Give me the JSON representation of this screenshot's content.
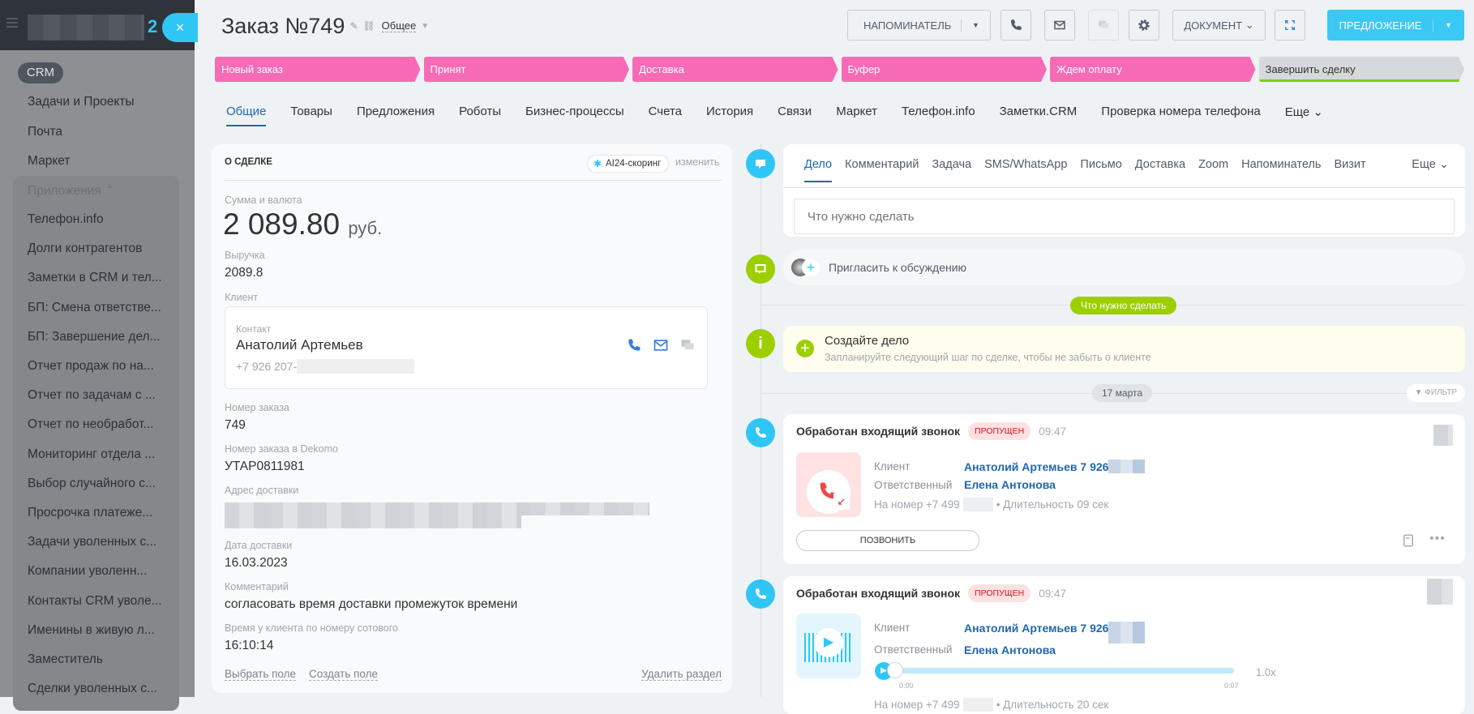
{
  "sidebar": {
    "logo_suffix": "2",
    "close_label": "×",
    "crm_label": "CRM",
    "items": [
      "Задачи и Проекты",
      "Почта",
      "Маркет"
    ],
    "apps_header": "Приложения",
    "apps": [
      "Телефон.info",
      "Долги контрагентов",
      "Заметки в CRM и тел...",
      "БП: Смена ответстве...",
      "БП: Завершение дел...",
      "Отчет продаж по на...",
      "Отчет по задачам с ...",
      "Отчет по необработ...",
      "Мониторинг отдела ...",
      "Выбор случайного с...",
      "Просрочка платеже...",
      "Задачи уволенных с...",
      "Компании уволенн...",
      "Контакты CRM уволе...",
      "Именины в живую л...",
      "Заместитель",
      "Сделки уволенных с..."
    ]
  },
  "header": {
    "title": "Заказ №749",
    "category": "Общее",
    "reminder_label": "НАПОМИНАТЕЛЬ",
    "document_label": "ДОКУМЕНТ",
    "proposal_label": "ПРЕДЛОЖЕНИЕ",
    "accent": "#3bc8f5"
  },
  "stages": [
    {
      "label": "Новый заказ",
      "color": "#f76bb6"
    },
    {
      "label": "Принят",
      "color": "#f76bb6"
    },
    {
      "label": "Доставка",
      "color": "#f76bb6"
    },
    {
      "label": "Буфер",
      "color": "#f76bb6"
    },
    {
      "label": "Ждем оплату",
      "color": "#f76bb6"
    },
    {
      "label": "Завершить сделку",
      "color": "#d5d8dc"
    }
  ],
  "tabs": [
    "Общие",
    "Товары",
    "Предложения",
    "Роботы",
    "Бизнес-процессы",
    "Счета",
    "История",
    "Связи",
    "Маркет",
    "Телефон.info",
    "Заметки.CRM",
    "Проверка номера телефона",
    "Еще"
  ],
  "deal": {
    "section_title": "О СДЕЛКЕ",
    "scoring_label": "AI24-скоринг",
    "edit_label": "изменить",
    "amount_label": "Сумма и валюта",
    "amount": "2 089.80",
    "currency": "руб.",
    "revenue_label": "Выручка",
    "revenue": "2089.8",
    "client_label": "Клиент",
    "contact_label": "Контакт",
    "contact_name": "Анатолий Артемьев",
    "contact_phone": "+7 926 207-",
    "order_label": "Номер заказа",
    "order": "749",
    "dekomo_label": "Номер заказа в Dekomo",
    "dekomo": "УТАР0811981",
    "address_label": "Адрес доставки",
    "date_label": "Дата доставки",
    "date": "16.03.2023",
    "comment_label": "Комментарий",
    "comment": "согласовать время доставки промежуток времени",
    "time_label": "Время у клиента по номеру сотового",
    "time": "16:10:14",
    "select_field": "Выбрать поле",
    "create_field": "Создать поле",
    "delete_section": "Удалить раздел"
  },
  "activity": {
    "tabs": [
      "Дело",
      "Комментарий",
      "Задача",
      "SMS/WhatsApp",
      "Письмо",
      "Доставка",
      "Zoom",
      "Напоминатель",
      "Визит",
      "Еще"
    ],
    "placeholder": "Что нужно сделать",
    "invite": "Пригласить к обсуждению",
    "todo_badge": "Что нужно сделать",
    "create_title": "Создайте дело",
    "create_sub": "Запланируйте следующий шаг по сделке, чтобы не забыть о клиенте",
    "date_sep": "17 марта",
    "filter": "ФИЛЬТР"
  },
  "calls": [
    {
      "title": "Обработан входящий звонок",
      "status": "ПРОПУЩЕН",
      "time": "09:47",
      "client_label": "Клиент",
      "client": "Анатолий Артемьев 7 926",
      "resp_label": "Ответственный",
      "resp": "Елена Антонова",
      "number_prefix": "На номер +7 499",
      "duration": "• Длительность 09 сек",
      "call_btn": "ПОЗВОНИТЬ"
    },
    {
      "title": "Обработан входящий звонок",
      "status": "ПРОПУЩЕН",
      "time": "09:47",
      "client_label": "Клиент",
      "client": "Анатолий Артемьев 7 926",
      "resp_label": "Ответственный",
      "resp": "Елена Антонова",
      "t_start": "0:00",
      "t_end": "0:07",
      "speed": "1.0x",
      "playback_progress": 0,
      "number_prefix": "На номер +7 499",
      "duration": "• Длительность 20 сек"
    }
  ]
}
